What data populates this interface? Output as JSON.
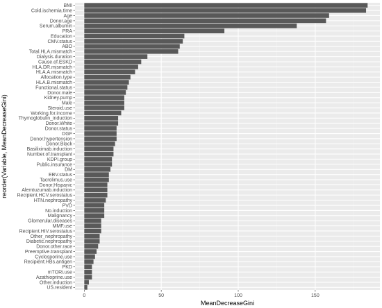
{
  "chart_data": {
    "type": "bar",
    "orientation": "horizontal",
    "xlabel": "MeanDecreaseGini",
    "ylabel": "reorder(Variable, MeanDecreaseGini)",
    "xlim": [
      -6,
      192
    ],
    "x_ticks": [
      0,
      50,
      100,
      150
    ],
    "grid": true,
    "colors": {
      "panel": "#ebebeb",
      "grid_major": "#ffffff",
      "grid_minor": "#f3f3f3",
      "bar": "#595959",
      "tick_text": "#4d4d4d"
    },
    "categories": [
      "BMI",
      "Cold.ischemia.time",
      "Age",
      "Donor.age",
      "Serum.albumin",
      "PRA",
      "Education",
      "CMV.status",
      "ABO",
      "Total.HLA.mismatch",
      "Dialysis.duration",
      "Cause.of.ESKD",
      "HLA.DR.mismatch",
      "HLA.A.mismatch",
      "Allocation.type",
      "HLA.B.mismatch",
      "Functional.status",
      "Donor.male",
      "Kidney.pump",
      "Male",
      "Steroid.use",
      "Working.for.income",
      "Thymoglobulin_induction",
      "Donor.White",
      "Donor.status",
      "DGF",
      "Donor.hypertension",
      "Donor.Black",
      "Basiliximab.induction",
      "Number.of.transplant",
      "KDPI.group",
      "Public.insurance",
      "DM",
      "EBV.status",
      "Tacrolimus.use",
      "Donor.Hispanic",
      "Alemtuzumab.induction",
      "Recipient.HCV.serostatus",
      "HTN.nephropathy",
      "PVD",
      "No.induction",
      "Malignancy",
      "Glomerular.diseases",
      "MMF.use",
      "Recipient.HIV.serostatus",
      "Other_nephropathy",
      "Diabetic.nephropathy",
      "Donor.other.race",
      "Preemptive.transplant",
      "Cyclosporine.use",
      "Recipient.HBs.antigen",
      "PKD",
      "mTORi.use",
      "Azathioprine.use",
      "Other.induction",
      "US.resident"
    ],
    "values": [
      184,
      183,
      159,
      157,
      138,
      91,
      65,
      64,
      62,
      61,
      41,
      37,
      35,
      33,
      30,
      29,
      28,
      27,
      26,
      26,
      26,
      24,
      22,
      22,
      21,
      21,
      21,
      20,
      19,
      19,
      18,
      18,
      17,
      16,
      16,
      15,
      15,
      15,
      14,
      13,
      13,
      13,
      11,
      11,
      11,
      10,
      10,
      9,
      8,
      7,
      6,
      5,
      5,
      5,
      3,
      2
    ]
  }
}
